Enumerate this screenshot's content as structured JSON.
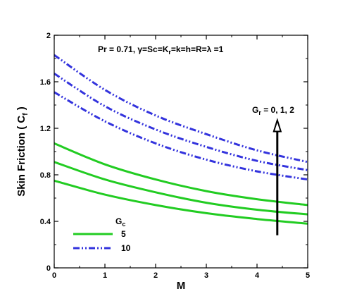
{
  "chart_data": {
    "type": "line",
    "xlabel": "M",
    "ylabel": "Skin Friction ( C",
    "ylabel_sub": "f",
    "ylabel_close": " )",
    "xlim": [
      0,
      5
    ],
    "ylim": [
      0,
      2
    ],
    "xticks": [
      "0",
      "1",
      "2",
      "3",
      "4",
      "5"
    ],
    "xtick_values": [
      0,
      1,
      2,
      3,
      4,
      5
    ],
    "yticks": [
      "0",
      "0.4",
      "0.8",
      "1.2",
      "1.6",
      "2"
    ],
    "ytick_values": [
      0,
      0.4,
      0.8,
      1.2,
      1.6,
      2
    ],
    "grid": false,
    "params": {
      "prefix": "Pr = 0.71, γ=Sc=K",
      "sub": "r",
      "suffix": "=k=h=R=λ =1"
    },
    "arrow": {
      "label_main": "G",
      "label_sub": "r",
      "label_rest": " = 0, 1, 2",
      "x": 4.4,
      "y_start": 0.28,
      "y_end": 1.27
    },
    "legend": {
      "title_main": "G",
      "title_sub": "c",
      "entries": [
        {
          "label": "5",
          "color": "#22cc22",
          "style": "solid"
        },
        {
          "label": "10",
          "color": "#3333dd",
          "style": "dashdotdot"
        }
      ]
    },
    "series": [
      {
        "group": "5",
        "color": "#22cc22",
        "style": "solid",
        "x": [
          0,
          1,
          2,
          3,
          4,
          5
        ],
        "y": [
          0.75,
          0.63,
          0.54,
          0.47,
          0.42,
          0.38
        ]
      },
      {
        "group": "5",
        "color": "#22cc22",
        "style": "solid",
        "x": [
          0,
          1,
          2,
          3,
          4,
          5
        ],
        "y": [
          0.91,
          0.76,
          0.65,
          0.56,
          0.5,
          0.46
        ]
      },
      {
        "group": "5",
        "color": "#22cc22",
        "style": "solid",
        "x": [
          0,
          1,
          2,
          3,
          4,
          5
        ],
        "y": [
          1.07,
          0.89,
          0.76,
          0.66,
          0.59,
          0.54
        ]
      },
      {
        "group": "10",
        "color": "#3333dd",
        "style": "dashdotdot",
        "x": [
          0,
          1,
          2,
          3,
          4,
          5
        ],
        "y": [
          1.51,
          1.26,
          1.07,
          0.93,
          0.83,
          0.76
        ]
      },
      {
        "group": "10",
        "color": "#3333dd",
        "style": "dashdotdot",
        "x": [
          0,
          1,
          2,
          3,
          4,
          5
        ],
        "y": [
          1.67,
          1.39,
          1.19,
          1.04,
          0.92,
          0.84
        ]
      },
      {
        "group": "10",
        "color": "#3333dd",
        "style": "dashdotdot",
        "x": [
          0,
          1,
          2,
          3,
          4,
          5
        ],
        "y": [
          1.83,
          1.53,
          1.31,
          1.15,
          1.01,
          0.91
        ]
      }
    ]
  }
}
